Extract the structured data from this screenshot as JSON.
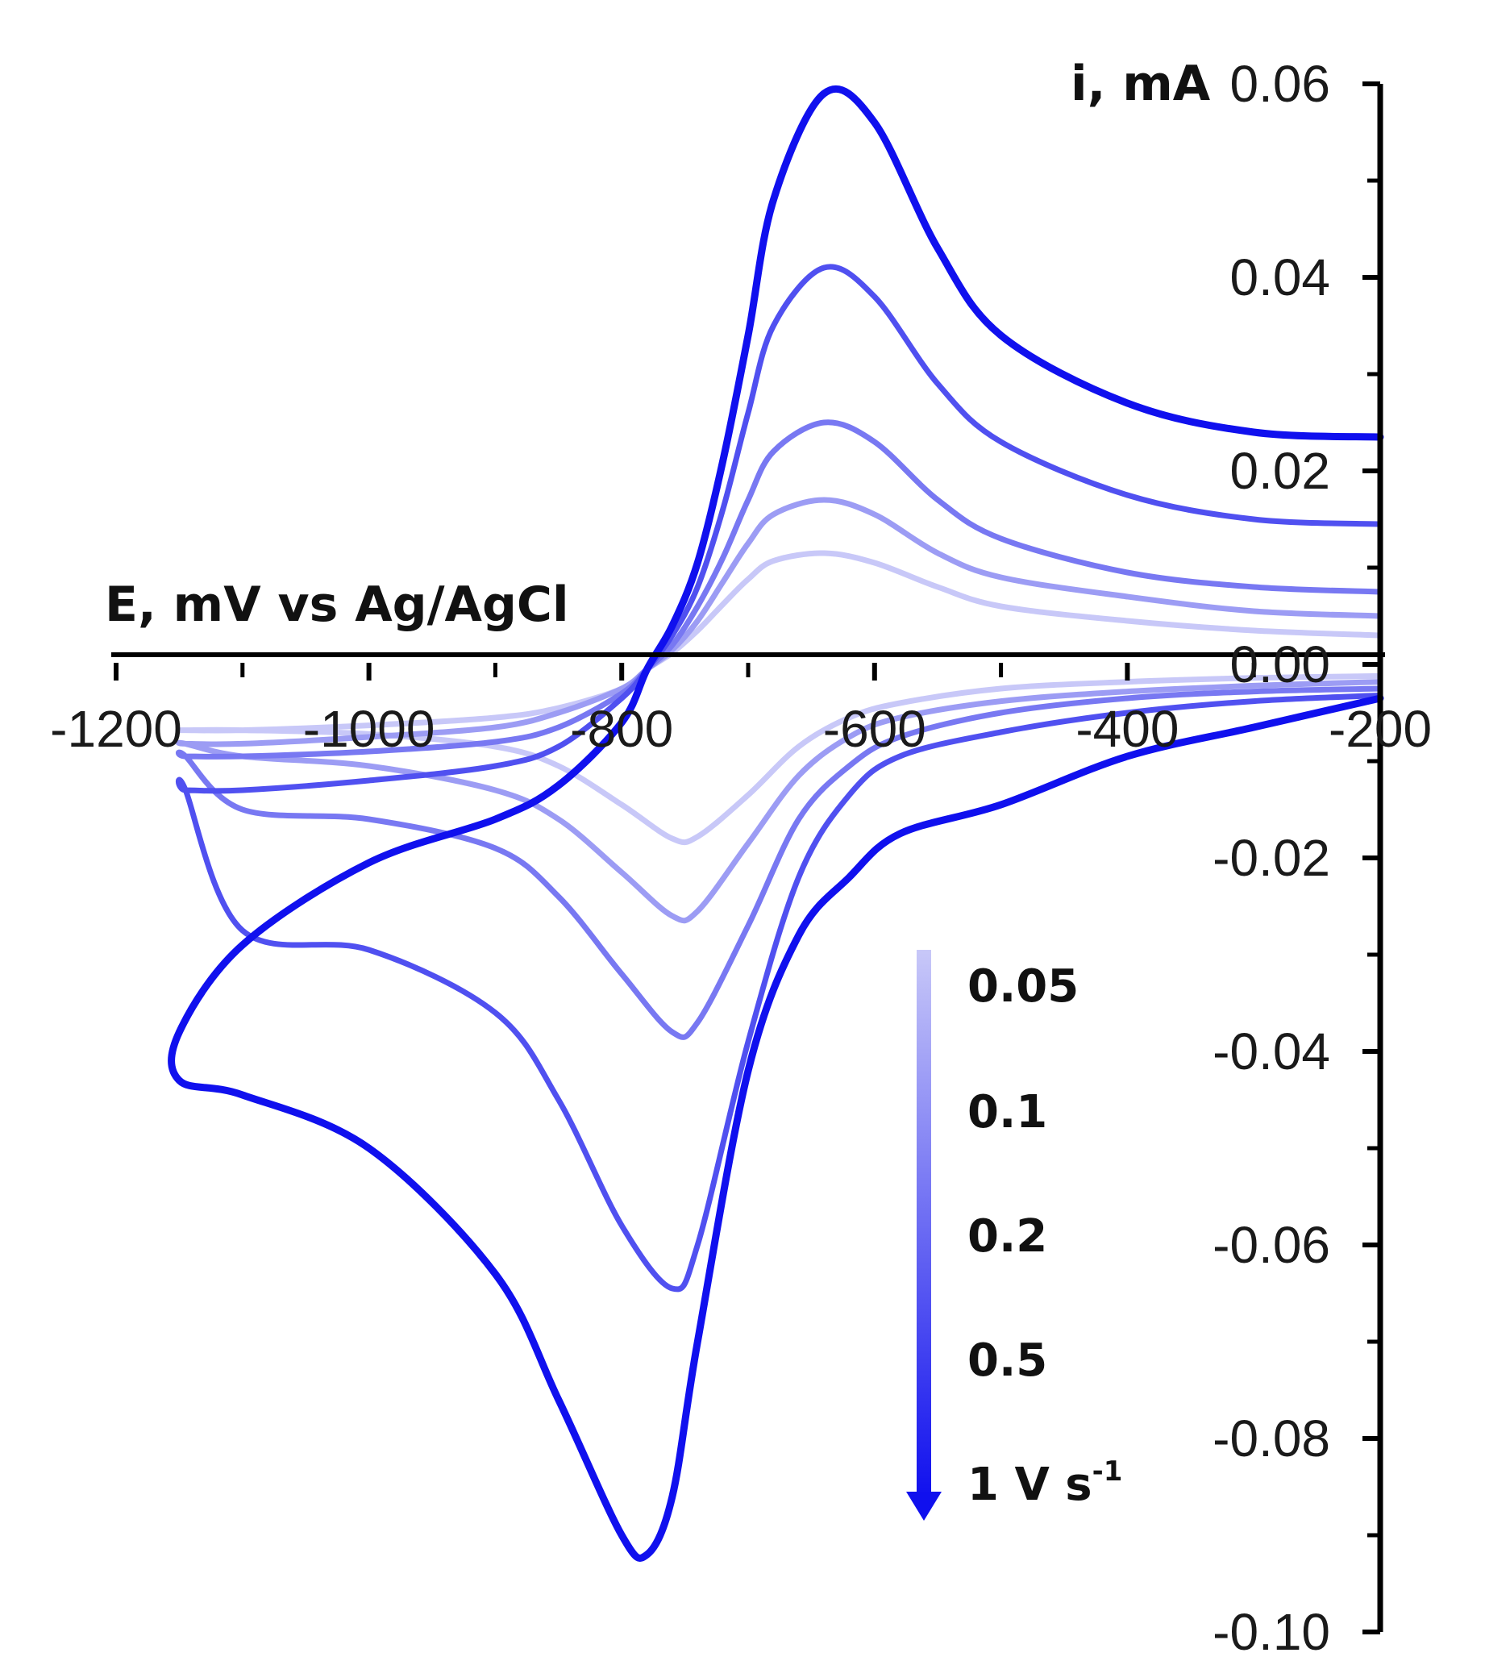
{
  "chart_data": {
    "type": "line",
    "title": "",
    "xlabel": "E, mV vs Ag/AgCl",
    "ylabel": "i, mA",
    "xlim": [
      -1200,
      -200
    ],
    "ylim": [
      -0.1,
      0.06
    ],
    "x_ticks": [
      -1200,
      -1000,
      -800,
      -600,
      -400,
      -200
    ],
    "x_tick_labels": [
      "-1200",
      "-1000",
      "-800",
      "-600",
      "-400",
      "-200"
    ],
    "y_ticks": [
      0.06,
      0.04,
      0.02,
      0.0,
      -0.02,
      -0.04,
      -0.06,
      -0.08,
      -0.1
    ],
    "y_tick_labels": [
      "0.06",
      "0.04",
      "0.02",
      "0.00",
      "-0.02",
      "-0.04",
      "-0.06",
      "-0.08",
      "-0.10"
    ],
    "grid": false,
    "legend": {
      "placement": "lower-center",
      "style": "gradient arrow from light to dark blue",
      "entries": [
        "0.05",
        "0.1",
        "0.2",
        "0.5",
        "1 V s"
      ],
      "unit_superscript": "-1"
    },
    "series": [
      {
        "name": "0.05",
        "color": "#c8c8f8",
        "forward": {
          "x": [
            -200,
            -300,
            -400,
            -500,
            -550,
            -600,
            -640,
            -680,
            -700,
            -720,
            -740,
            -760,
            -780,
            -800,
            -850,
            -900,
            -1000,
            -1100,
            -1145
          ],
          "y": [
            0.003,
            0.0035,
            0.0045,
            0.006,
            0.008,
            0.0105,
            0.0115,
            0.0107,
            0.0088,
            0.0062,
            0.0035,
            0.0012,
            -0.0005,
            -0.0025,
            -0.0045,
            -0.0055,
            -0.0063,
            -0.0068,
            -0.0068
          ]
        },
        "reverse": {
          "x": [
            -1145,
            -1100,
            -1000,
            -900,
            -850,
            -800,
            -760,
            -740,
            -700,
            -660,
            -620,
            -580,
            -500,
            -400,
            -300,
            -200
          ],
          "y": [
            -0.0068,
            -0.0068,
            -0.0072,
            -0.0085,
            -0.0105,
            -0.0145,
            -0.018,
            -0.0178,
            -0.0135,
            -0.0085,
            -0.0055,
            -0.004,
            -0.0025,
            -0.0018,
            -0.0014,
            -0.0012
          ]
        }
      },
      {
        "name": "0.1",
        "color": "#9c9cf4",
        "forward": {
          "x": [
            -200,
            -300,
            -400,
            -500,
            -550,
            -600,
            -640,
            -680,
            -700,
            -720,
            -740,
            -760,
            -780,
            -800,
            -850,
            -900,
            -1000,
            -1100,
            -1145
          ],
          "y": [
            0.005,
            0.0055,
            0.007,
            0.009,
            0.0115,
            0.0155,
            0.017,
            0.0155,
            0.0125,
            0.0085,
            0.0045,
            0.0015,
            -0.0005,
            -0.0025,
            -0.005,
            -0.0065,
            -0.0075,
            -0.0082,
            -0.0082
          ]
        },
        "reverse": {
          "x": [
            -1145,
            -1100,
            -1000,
            -900,
            -850,
            -800,
            -760,
            -740,
            -700,
            -660,
            -620,
            -580,
            -500,
            -400,
            -300,
            -200
          ],
          "y": [
            -0.0082,
            -0.0095,
            -0.0105,
            -0.013,
            -0.016,
            -0.0215,
            -0.026,
            -0.0255,
            -0.0185,
            -0.0115,
            -0.0075,
            -0.0055,
            -0.0038,
            -0.0028,
            -0.0022,
            -0.0018
          ]
        }
      },
      {
        "name": "0.2",
        "color": "#7878f2",
        "forward": {
          "x": [
            -200,
            -300,
            -400,
            -500,
            -550,
            -600,
            -640,
            -680,
            -700,
            -720,
            -740,
            -760,
            -780,
            -800,
            -850,
            -900,
            -1000,
            -1100,
            -1145
          ],
          "y": [
            0.0075,
            0.008,
            0.0095,
            0.013,
            0.017,
            0.023,
            0.025,
            0.022,
            0.017,
            0.011,
            0.006,
            0.002,
            -0.0005,
            -0.003,
            -0.0065,
            -0.008,
            -0.009,
            -0.0095,
            -0.0095
          ]
        },
        "reverse": {
          "x": [
            -1145,
            -1100,
            -1000,
            -900,
            -850,
            -800,
            -760,
            -740,
            -700,
            -660,
            -620,
            -580,
            -500,
            -400,
            -300,
            -200
          ],
          "y": [
            -0.0095,
            -0.015,
            -0.016,
            -0.019,
            -0.024,
            -0.032,
            -0.038,
            -0.037,
            -0.027,
            -0.016,
            -0.0105,
            -0.0075,
            -0.005,
            -0.0035,
            -0.0028,
            -0.0025
          ]
        }
      },
      {
        "name": "0.5",
        "color": "#5050f0",
        "forward": {
          "x": [
            -200,
            -300,
            -400,
            -500,
            -550,
            -600,
            -640,
            -680,
            -700,
            -720,
            -740,
            -760,
            -780,
            -800,
            -850,
            -900,
            -1000,
            -1100,
            -1145
          ],
          "y": [
            0.0145,
            0.015,
            0.0175,
            0.023,
            0.029,
            0.038,
            0.041,
            0.035,
            0.026,
            0.016,
            0.008,
            0.003,
            -0.0005,
            -0.0035,
            -0.0085,
            -0.0105,
            -0.012,
            -0.013,
            -0.013
          ]
        },
        "reverse": {
          "x": [
            -1145,
            -1100,
            -1000,
            -900,
            -850,
            -800,
            -760,
            -740,
            -700,
            -660,
            -620,
            -580,
            -500,
            -400,
            -300,
            -200
          ],
          "y": [
            -0.013,
            -0.0275,
            -0.0295,
            -0.036,
            -0.045,
            -0.058,
            -0.0645,
            -0.06,
            -0.039,
            -0.022,
            -0.0135,
            -0.0095,
            -0.007,
            -0.005,
            -0.0038,
            -0.0032
          ]
        }
      },
      {
        "name": "1 V s-1",
        "color": "#1010ee",
        "forward": {
          "x": [
            -200,
            -300,
            -400,
            -500,
            -550,
            -600,
            -640,
            -680,
            -700,
            -720,
            -740,
            -760,
            -780,
            -800,
            -850,
            -900,
            -1000,
            -1100,
            -1150
          ],
          "y": [
            0.0235,
            0.024,
            0.027,
            0.034,
            0.043,
            0.056,
            0.059,
            0.048,
            0.034,
            0.021,
            0.0105,
            0.004,
            -0.0005,
            -0.006,
            -0.0125,
            -0.016,
            -0.0205,
            -0.029,
            -0.038
          ]
        },
        "reverse": {
          "x": [
            -1150,
            -1100,
            -1000,
            -900,
            -850,
            -800,
            -780,
            -760,
            -740,
            -700,
            -660,
            -620,
            -580,
            -500,
            -400,
            -300,
            -200
          ],
          "y": [
            -0.043,
            -0.0445,
            -0.05,
            -0.063,
            -0.076,
            -0.09,
            -0.092,
            -0.086,
            -0.07,
            -0.042,
            -0.028,
            -0.022,
            -0.0175,
            -0.0145,
            -0.0095,
            -0.0065,
            -0.0035
          ]
        }
      }
    ]
  }
}
